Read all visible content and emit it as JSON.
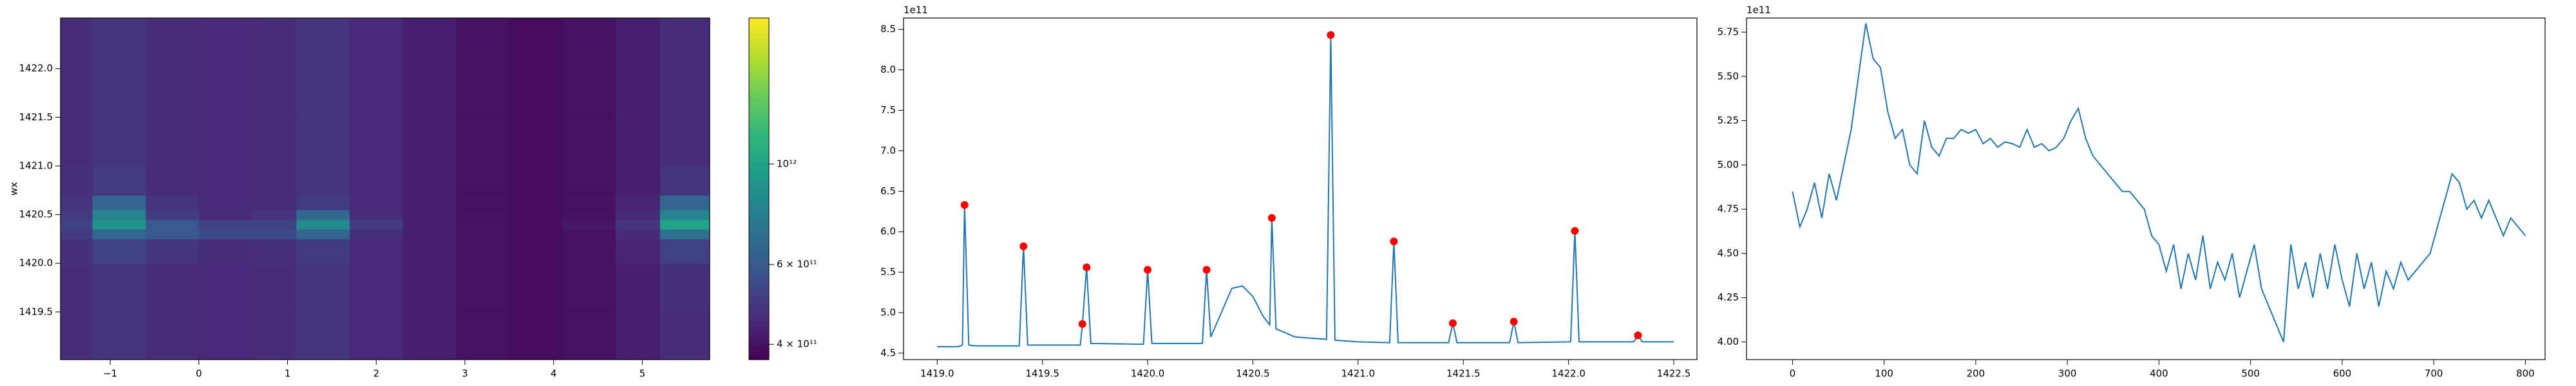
{
  "chart_data": [
    {
      "type": "heatmap",
      "ylabel": "wx",
      "xbins": [
        -1.56,
        -1.2,
        -0.6,
        0,
        0.6,
        1.1,
        1.7,
        2.3,
        2.9,
        3.5,
        4.1,
        4.7,
        5.2,
        5.76
      ],
      "ybins": [
        1419.01,
        1419.5,
        1420.0,
        1420.25,
        1420.35,
        1420.45,
        1420.55,
        1420.7,
        1421.0,
        1421.5,
        1422.0,
        1422.52
      ],
      "values": [
        [
          460000000000.0,
          480000000000.0,
          460000000000.0,
          450000000000.0,
          460000000000.0,
          480000000000.0,
          450000000000.0,
          430000000000.0,
          400000000000.0,
          390000000000.0,
          400000000000.0,
          430000000000.0,
          460000000000.0
        ],
        [
          460000000000.0,
          480000000000.0,
          460000000000.0,
          450000000000.0,
          460000000000.0,
          480000000000.0,
          450000000000.0,
          430000000000.0,
          400000000000.0,
          390000000000.0,
          400000000000.0,
          430000000000.0,
          470000000000.0
        ],
        [
          470000000000.0,
          520000000000.0,
          480000000000.0,
          460000000000.0,
          470000000000.0,
          500000000000.0,
          450000000000.0,
          430000000000.0,
          400000000000.0,
          390000000000.0,
          400000000000.0,
          440000000000.0,
          520000000000.0
        ],
        [
          500000000000.0,
          650000000000.0,
          600000000000.0,
          550000000000.0,
          550000000000.0,
          650000000000.0,
          470000000000.0,
          430000000000.0,
          400000000000.0,
          390000000000.0,
          400000000000.0,
          460000000000.0,
          700000000000.0
        ],
        [
          520000000000.0,
          900000000000.0,
          600000000000.0,
          520000000000.0,
          520000000000.0,
          850000000000.0,
          500000000000.0,
          430000000000.0,
          400000000000.0,
          390000000000.0,
          410000000000.0,
          480000000000.0,
          1000000000000.0
        ],
        [
          500000000000.0,
          800000000000.0,
          500000000000.0,
          460000000000.0,
          480000000000.0,
          650000000000.0,
          460000000000.0,
          430000000000.0,
          400000000000.0,
          390000000000.0,
          400000000000.0,
          460000000000.0,
          800000000000.0
        ],
        [
          480000000000.0,
          650000000000.0,
          480000000000.0,
          450000000000.0,
          460000000000.0,
          500000000000.0,
          450000000000.0,
          430000000000.0,
          400000000000.0,
          390000000000.0,
          400000000000.0,
          440000000000.0,
          650000000000.0
        ],
        [
          470000000000.0,
          500000000000.0,
          460000000000.0,
          450000000000.0,
          460000000000.0,
          480000000000.0,
          450000000000.0,
          430000000000.0,
          400000000000.0,
          390000000000.0,
          400000000000.0,
          430000000000.0,
          480000000000.0
        ],
        [
          460000000000.0,
          480000000000.0,
          460000000000.0,
          450000000000.0,
          460000000000.0,
          480000000000.0,
          450000000000.0,
          430000000000.0,
          400000000000.0,
          390000000000.0,
          400000000000.0,
          430000000000.0,
          460000000000.0
        ],
        [
          460000000000.0,
          480000000000.0,
          460000000000.0,
          450000000000.0,
          460000000000.0,
          480000000000.0,
          450000000000.0,
          430000000000.0,
          400000000000.0,
          390000000000.0,
          400000000000.0,
          430000000000.0,
          460000000000.0
        ],
        [
          460000000000.0,
          480000000000.0,
          460000000000.0,
          450000000000.0,
          460000000000.0,
          480000000000.0,
          450000000000.0,
          430000000000.0,
          400000000000.0,
          390000000000.0,
          400000000000.0,
          430000000000.0,
          460000000000.0
        ]
      ],
      "xlim": [
        -1.56,
        5.76
      ],
      "ylim": [
        1419.01,
        1422.52
      ],
      "xticks": [
        {
          "value": -1,
          "label": "−1"
        },
        0,
        1,
        2,
        3,
        4,
        5
      ],
      "yticks": [
        1419.5,
        {
          "value": 1420,
          "label": "1420.0"
        },
        1420.5,
        {
          "value": 1421,
          "label": "1421.0"
        },
        1421.5,
        {
          "value": 1422,
          "label": "1422.0"
        }
      ],
      "colorbar": {
        "cmap": "viridis",
        "log_scale": true,
        "lim": [
          370000000000.0,
          2100000000000.0
        ],
        "ticks": [
          {
            "value": 400000000000.0,
            "label": "4 × 10¹¹"
          },
          {
            "value": 600000000000.0,
            "label": "6 × 10¹¹"
          },
          {
            "value": 1000000000000.0,
            "label": "10¹²"
          }
        ]
      }
    },
    {
      "type": "line",
      "offset_label": "1e11",
      "series": [
        {
          "style": "line",
          "color": "#1f77b4",
          "x": [
            1419.0,
            1419.1,
            1419.12,
            1419.13,
            1419.15,
            1419.18,
            1419.39,
            1419.41,
            1419.43,
            1419.65,
            1419.68,
            1419.69,
            1419.71,
            1419.73,
            1419.98,
            1420.0,
            1420.02,
            1420.26,
            1420.28,
            1420.3,
            1420.35,
            1420.4,
            1420.45,
            1420.5,
            1420.55,
            1420.58,
            1420.59,
            1420.61,
            1420.7,
            1420.8,
            1420.85,
            1420.87,
            1420.89,
            1421.0,
            1421.15,
            1421.17,
            1421.19,
            1421.43,
            1421.45,
            1421.47,
            1421.72,
            1421.74,
            1421.76,
            1422.01,
            1422.03,
            1422.05,
            1422.31,
            1422.33,
            1422.35,
            1422.5
          ],
          "values": [
            4.58,
            4.58,
            4.6,
            6.33,
            4.6,
            4.59,
            4.59,
            5.82,
            4.6,
            4.6,
            4.6,
            4.86,
            5.56,
            4.62,
            4.61,
            5.53,
            4.62,
            4.62,
            5.53,
            4.7,
            5.0,
            5.3,
            5.33,
            5.2,
            4.95,
            4.85,
            6.17,
            4.8,
            4.7,
            4.68,
            4.67,
            8.43,
            4.66,
            4.64,
            4.63,
            5.88,
            4.63,
            4.63,
            4.87,
            4.63,
            4.63,
            4.89,
            4.63,
            4.64,
            6.01,
            4.64,
            4.64,
            4.72,
            4.64,
            4.64
          ]
        },
        {
          "style": "points",
          "color": "red",
          "x": [
            1419.13,
            1419.41,
            1419.69,
            1419.71,
            1420.0,
            1420.28,
            1420.59,
            1420.87,
            1421.17,
            1421.45,
            1421.74,
            1422.03,
            1422.33
          ],
          "values": [
            6.33,
            5.82,
            4.86,
            5.56,
            5.53,
            5.53,
            6.17,
            8.43,
            5.88,
            4.87,
            4.89,
            6.01,
            4.72
          ]
        }
      ],
      "xlim": [
        1418.84,
        1422.61
      ],
      "ylim": [
        4.42,
        8.64
      ],
      "xticks": [
        {
          "value": 1419,
          "label": "1419.0"
        },
        1419.5,
        {
          "value": 1420,
          "label": "1420.0"
        },
        1420.5,
        {
          "value": 1421,
          "label": "1421.0"
        },
        1421.5,
        {
          "value": 1422,
          "label": "1422.0"
        },
        1422.5
      ],
      "yticks": [
        4.5,
        {
          "value": 5,
          "label": "5.0"
        },
        5.5,
        {
          "value": 6,
          "label": "6.0"
        },
        6.5,
        {
          "value": 7,
          "label": "7.0"
        },
        7.5,
        {
          "value": 8,
          "label": "8.0"
        },
        8.5
      ]
    },
    {
      "type": "line",
      "offset_label": "1e11",
      "series": [
        {
          "style": "line",
          "color": "#1f77b4",
          "x": [
            0,
            8,
            16,
            24,
            32,
            40,
            48,
            56,
            64,
            72,
            80,
            88,
            96,
            104,
            112,
            120,
            128,
            136,
            144,
            152,
            160,
            168,
            176,
            184,
            192,
            200,
            208,
            216,
            224,
            232,
            240,
            248,
            256,
            264,
            272,
            280,
            288,
            296,
            304,
            312,
            320,
            328,
            336,
            344,
            352,
            360,
            368,
            376,
            384,
            392,
            400,
            408,
            416,
            424,
            432,
            440,
            448,
            456,
            464,
            472,
            480,
            488,
            496,
            504,
            512,
            520,
            528,
            536,
            544,
            552,
            560,
            568,
            576,
            584,
            592,
            600,
            608,
            616,
            624,
            632,
            640,
            648,
            656,
            664,
            672,
            680,
            688,
            696,
            704,
            712,
            720,
            728,
            736,
            744,
            752,
            760,
            768,
            776,
            784,
            792,
            800
          ],
          "values": [
            4.85,
            4.65,
            4.75,
            4.9,
            4.7,
            4.95,
            4.8,
            5.0,
            5.2,
            5.5,
            5.8,
            5.6,
            5.55,
            5.3,
            5.15,
            5.2,
            5.0,
            4.95,
            5.25,
            5.1,
            5.05,
            5.15,
            5.15,
            5.2,
            5.18,
            5.2,
            5.12,
            5.15,
            5.1,
            5.13,
            5.12,
            5.1,
            5.2,
            5.1,
            5.12,
            5.08,
            5.1,
            5.15,
            5.25,
            5.32,
            5.15,
            5.05,
            5.0,
            4.95,
            4.9,
            4.85,
            4.85,
            4.8,
            4.75,
            4.6,
            4.55,
            4.4,
            4.55,
            4.3,
            4.5,
            4.35,
            4.6,
            4.3,
            4.45,
            4.35,
            4.5,
            4.25,
            4.4,
            4.55,
            4.3,
            4.2,
            4.1,
            4.0,
            4.55,
            4.3,
            4.45,
            4.25,
            4.5,
            4.3,
            4.55,
            4.35,
            4.2,
            4.5,
            4.3,
            4.45,
            4.2,
            4.4,
            4.3,
            4.45,
            4.35,
            4.4,
            4.45,
            4.5,
            4.65,
            4.8,
            4.95,
            4.9,
            4.75,
            4.8,
            4.7,
            4.8,
            4.7,
            4.6,
            4.7,
            4.65,
            4.6
          ]
        }
      ],
      "xlim": [
        -50.2,
        821.5
      ],
      "ylim": [
        3.9,
        5.83
      ],
      "xticks": [
        0,
        100,
        200,
        300,
        400,
        500,
        600,
        700,
        800
      ],
      "yticks": [
        {
          "value": 4,
          "label": "4.00"
        },
        4.25,
        {
          "value": 4.5,
          "label": "4.50"
        },
        4.75,
        {
          "value": 5,
          "label": "5.00"
        },
        5.25,
        {
          "value": 5.5,
          "label": "5.50"
        },
        5.75
      ]
    }
  ]
}
